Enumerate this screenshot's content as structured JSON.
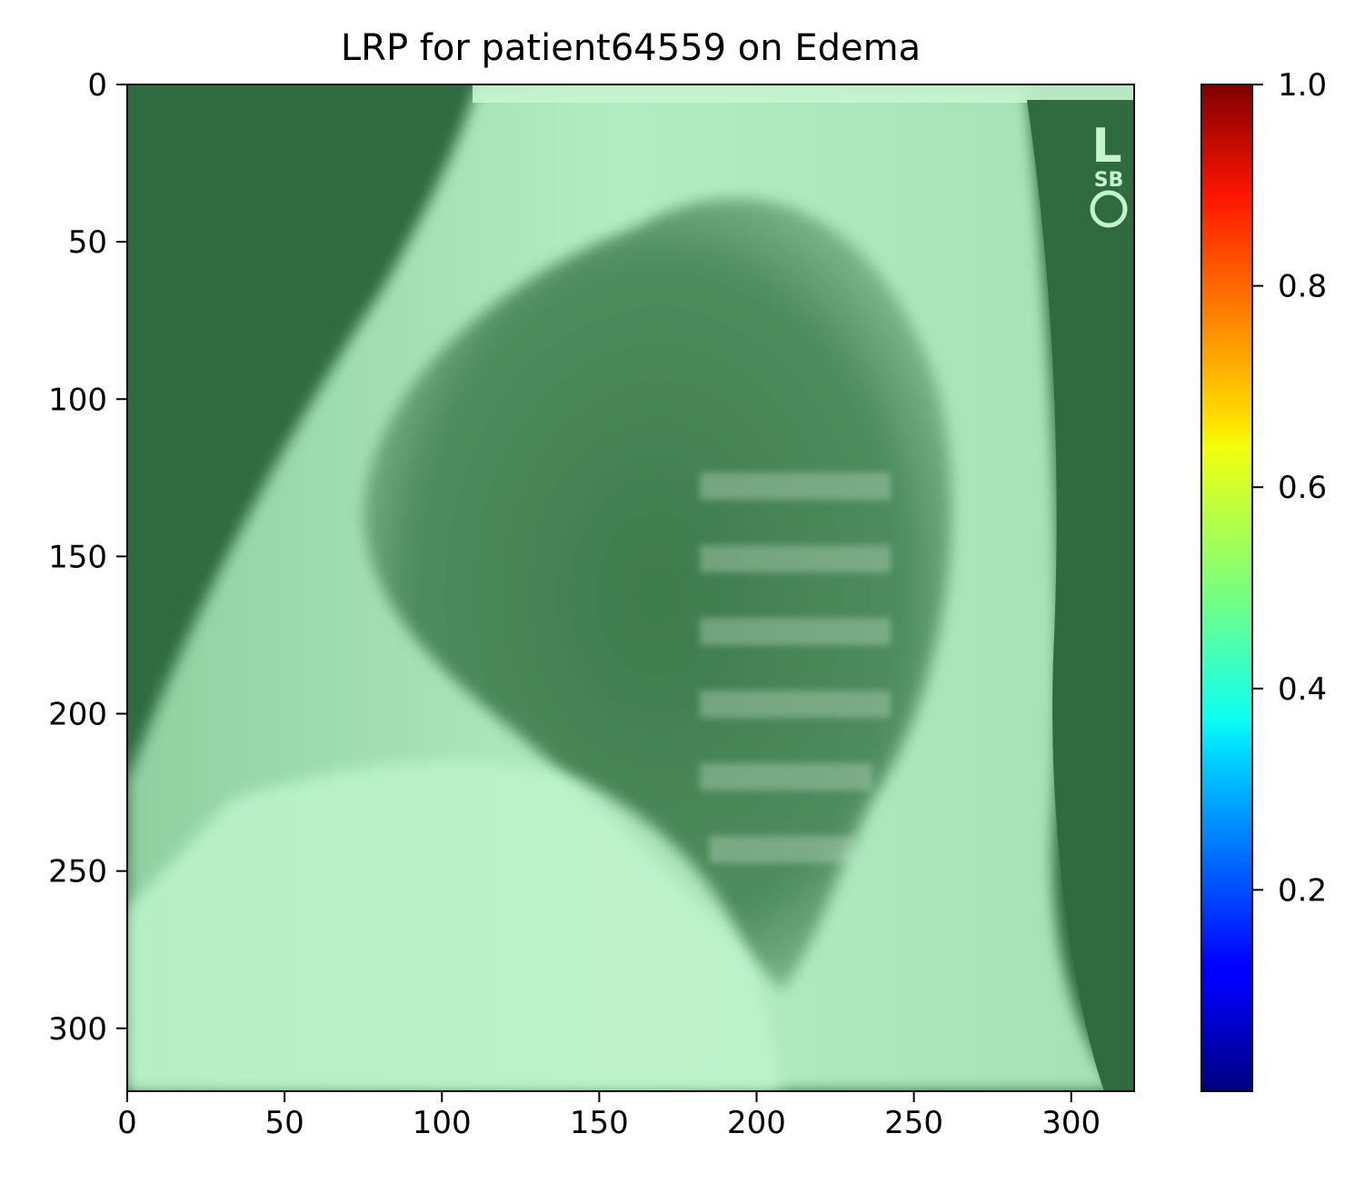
{
  "chart_data": {
    "type": "heatmap",
    "title": "LRP for patient64559 on Edema",
    "xlabel": "",
    "ylabel": "",
    "image_size": [
      320,
      320
    ],
    "xlim": [
      0,
      320
    ],
    "ylim": [
      320,
      0
    ],
    "xticks": [
      0,
      50,
      100,
      150,
      200,
      250,
      300
    ],
    "yticks": [
      0,
      50,
      100,
      150,
      200,
      250,
      300
    ],
    "colorbar": {
      "colormap": "jet",
      "range": [
        0.0,
        1.0
      ],
      "ticks": [
        0.2,
        0.4,
        0.6,
        0.8,
        1.0
      ],
      "tick_labels": [
        "0.2",
        "0.4",
        "0.6",
        "0.8",
        "1.0"
      ]
    },
    "image_description": "Lateral chest X-ray overlaid with LRP relevance map; overall tint green (relevance near 0.5)",
    "image_markers": [
      "L",
      "SB"
    ],
    "colors": {
      "overlay_dark": "#2f6b3e",
      "overlay_mid": "#6fae80",
      "overlay_light": "#c4f5d0"
    }
  }
}
